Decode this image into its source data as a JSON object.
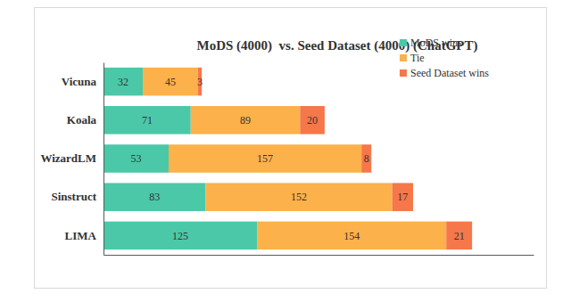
{
  "chart_data": {
    "type": "bar",
    "orientation": "horizontal",
    "stacked": true,
    "title": "MoDS (4000)  vs. Seed Dataset (4000) (ChatGPT)",
    "categories": [
      "Vicuna",
      "Koala",
      "WizardLM",
      "Sinstruct",
      "LIMA"
    ],
    "series": [
      {
        "name": "MoDS wins",
        "color": "#4bc8a8",
        "values": [
          32,
          71,
          53,
          83,
          125
        ]
      },
      {
        "name": "Tie",
        "color": "#fdb14a",
        "values": [
          45,
          89,
          157,
          152,
          154
        ]
      },
      {
        "name": "Seed Dataset wins",
        "color": "#f5774a",
        "values": [
          3,
          20,
          8,
          17,
          21
        ]
      }
    ],
    "xlim": [
      0,
      350
    ],
    "data_labels": true,
    "legend": "upper right",
    "tick_labels": "y",
    "grid": false
  }
}
